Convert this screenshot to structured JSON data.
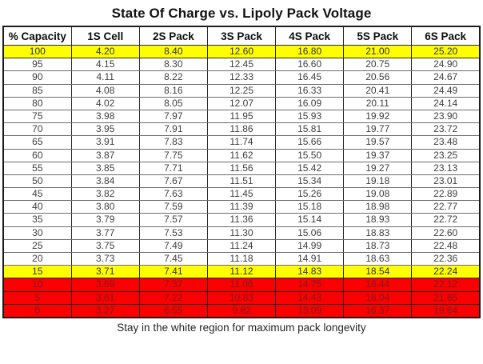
{
  "page": {
    "title": "State Of Charge vs. Lipoly Pack Voltage",
    "footer": "Stay in the white region for maximum pack longevity"
  },
  "colors": {
    "highlight_yellow": "#FFFF00",
    "danger_red_bg": "#FA0000",
    "danger_red_text": "#7E1C1C",
    "body_text": "#3F3F3F"
  },
  "chart_data": {
    "type": "table",
    "title": "State Of Charge vs. Lipoly Pack Voltage",
    "columns": [
      "% Capacity",
      "1S Cell",
      "2S Pack",
      "3S Pack",
      "4S Pack",
      "5S Pack",
      "6S Pack"
    ],
    "rows": [
      {
        "cells": [
          "100",
          "4.20",
          "8.40",
          "12.60",
          "16.80",
          "21.00",
          "25.20"
        ],
        "highlight": "yellow"
      },
      {
        "cells": [
          "95",
          "4.15",
          "8.30",
          "12.45",
          "16.60",
          "20.75",
          "24.90"
        ],
        "highlight": "none"
      },
      {
        "cells": [
          "90",
          "4.11",
          "8.22",
          "12.33",
          "16.45",
          "20.56",
          "24.67"
        ],
        "highlight": "none"
      },
      {
        "cells": [
          "85",
          "4.08",
          "8.16",
          "12.25",
          "16.33",
          "20.41",
          "24.49"
        ],
        "highlight": "none"
      },
      {
        "cells": [
          "80",
          "4.02",
          "8.05",
          "12.07",
          "16.09",
          "20.11",
          "24.14"
        ],
        "highlight": "none"
      },
      {
        "cells": [
          "75",
          "3.98",
          "7.97",
          "11.95",
          "15.93",
          "19.92",
          "23.90"
        ],
        "highlight": "none"
      },
      {
        "cells": [
          "70",
          "3.95",
          "7.91",
          "11.86",
          "15.81",
          "19.77",
          "23.72"
        ],
        "highlight": "none"
      },
      {
        "cells": [
          "65",
          "3.91",
          "7.83",
          "11.74",
          "15.66",
          "19.57",
          "23.48"
        ],
        "highlight": "none"
      },
      {
        "cells": [
          "60",
          "3.87",
          "7.75",
          "11.62",
          "15.50",
          "19.37",
          "23.25"
        ],
        "highlight": "none"
      },
      {
        "cells": [
          "55",
          "3.85",
          "7.71",
          "11.56",
          "15.42",
          "19.27",
          "23.13"
        ],
        "highlight": "none"
      },
      {
        "cells": [
          "50",
          "3.84",
          "7.67",
          "11.51",
          "15.34",
          "19.18",
          "23.01"
        ],
        "highlight": "none"
      },
      {
        "cells": [
          "45",
          "3.82",
          "7.63",
          "11.45",
          "15.26",
          "19.08",
          "22.89"
        ],
        "highlight": "none"
      },
      {
        "cells": [
          "40",
          "3.80",
          "7.59",
          "11.39",
          "15.18",
          "18.98",
          "22.77"
        ],
        "highlight": "none"
      },
      {
        "cells": [
          "35",
          "3.79",
          "7.57",
          "11.36",
          "15.14",
          "18.93",
          "22.72"
        ],
        "highlight": "none"
      },
      {
        "cells": [
          "30",
          "3.77",
          "7.53",
          "11.30",
          "15.06",
          "18.83",
          "22.60"
        ],
        "highlight": "none"
      },
      {
        "cells": [
          "25",
          "3.75",
          "7.49",
          "11.24",
          "14.99",
          "18.73",
          "22.48"
        ],
        "highlight": "none"
      },
      {
        "cells": [
          "20",
          "3.73",
          "7.45",
          "11.18",
          "14.91",
          "18.63",
          "22.36"
        ],
        "highlight": "none"
      },
      {
        "cells": [
          "15",
          "3.71",
          "7.41",
          "11.12",
          "14.83",
          "18.54",
          "22.24"
        ],
        "highlight": "yellow"
      },
      {
        "cells": [
          "10",
          "3.69",
          "7.37",
          "11.06",
          "14.75",
          "18.44",
          "22.12"
        ],
        "highlight": "red"
      },
      {
        "cells": [
          "5",
          "3.61",
          "7.22",
          "10.83",
          "14.43",
          "18.04",
          "21.65"
        ],
        "highlight": "red"
      },
      {
        "cells": [
          "0",
          "3.27",
          "6.55",
          "9.82",
          "13.09",
          "16.37",
          "19.64"
        ],
        "highlight": "red"
      }
    ]
  }
}
